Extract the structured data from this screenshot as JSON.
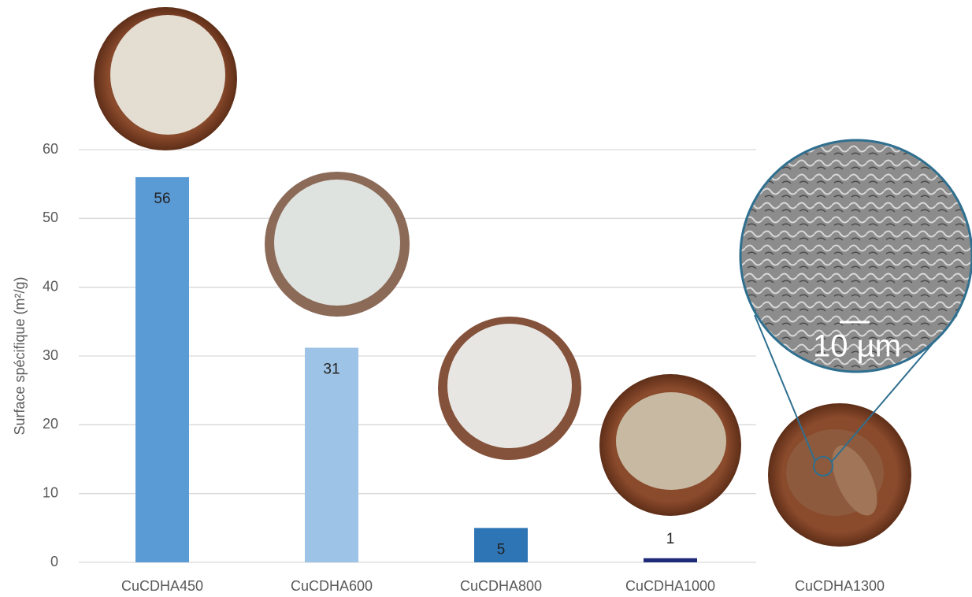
{
  "chart_data": {
    "type": "bar",
    "y_label": "Surface spécifique (m²/g)",
    "categories": [
      "CuCDHA450",
      "CuCDHA600",
      "CuCDHA800",
      "CuCDHA1000",
      "CuCDHA1300"
    ],
    "values": [
      56,
      31.2,
      5,
      0.6,
      null
    ],
    "value_labels": [
      "56",
      "31",
      "5",
      "1",
      null
    ],
    "colors": [
      "#5b9bd5",
      "#9dc3e6",
      "#2e75b6",
      "#1f2a78",
      null
    ],
    "ylim": [
      0,
      60
    ],
    "yticks": [
      0,
      10,
      20,
      30,
      40,
      50,
      60
    ],
    "grid": true,
    "annotation": "10 µm"
  }
}
